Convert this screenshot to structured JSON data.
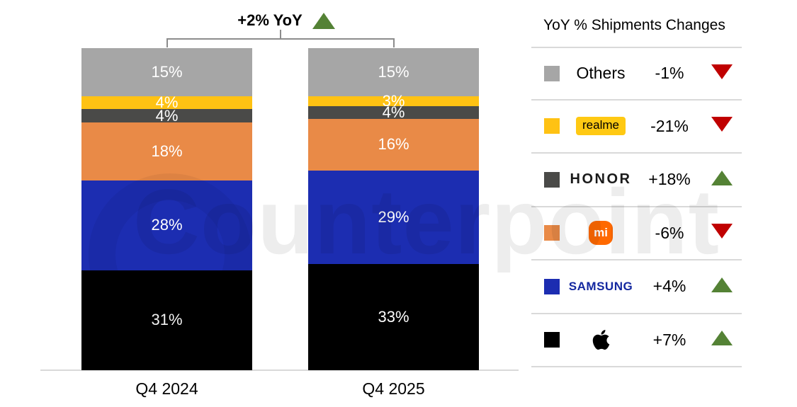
{
  "header": {
    "total_yoy": "+2% YoY"
  },
  "watermark": {
    "text": "Counterpoint"
  },
  "chart_data": {
    "type": "bar",
    "stacked": true,
    "unit": "%",
    "title": "+2% YoY",
    "categories": [
      "Q4 2024",
      "Q4 2025"
    ],
    "series": [
      {
        "name": "Others",
        "color": "#a6a6a6",
        "values": [
          15,
          15
        ],
        "yoy": "-1%",
        "trend": "down"
      },
      {
        "name": "realme",
        "color": "#ffc213",
        "values": [
          4,
          3
        ],
        "yoy": "-21%",
        "trend": "down"
      },
      {
        "name": "HONOR",
        "color": "#4a4a48",
        "values": [
          4,
          4
        ],
        "yoy": "+18%",
        "trend": "up"
      },
      {
        "name": "Xiaomi",
        "color": "#e98a47",
        "values": [
          18,
          16
        ],
        "yoy": "-6%",
        "trend": "down"
      },
      {
        "name": "Samsung",
        "color": "#1c2db1",
        "values": [
          28,
          29
        ],
        "yoy": "+4%",
        "trend": "up"
      },
      {
        "name": "Apple",
        "color": "#000000",
        "values": [
          31,
          33
        ],
        "yoy": "+7%",
        "trend": "up"
      }
    ],
    "ylim": [
      0,
      100
    ],
    "grid": false,
    "legend_position": "right"
  },
  "legend": {
    "title": "YoY % Shipments Changes",
    "rows": [
      {
        "brand": "Others",
        "display": "text",
        "swatch": "#a6a6a6",
        "value": "-1%",
        "trend": "down"
      },
      {
        "brand": "realme",
        "display": "badge",
        "swatch": "#ffc213",
        "value": "-21%",
        "trend": "down"
      },
      {
        "brand": "HONOR",
        "display": "honor",
        "swatch": "#4a4a48",
        "value": "+18%",
        "trend": "up"
      },
      {
        "brand": "mi",
        "display": "mi",
        "swatch": "#e98a47",
        "value": "-6%",
        "trend": "down"
      },
      {
        "brand": "SAMSUNG",
        "display": "samsung",
        "swatch": "#1c2db1",
        "value": "+4%",
        "trend": "up"
      },
      {
        "brand": "Apple",
        "display": "apple",
        "swatch": "#000000",
        "value": "+7%",
        "trend": "up"
      }
    ]
  },
  "colors": {
    "up_triangle": "#548235",
    "down_triangle": "#c00000",
    "divider": "#d9d9d9",
    "bracket": "#8c8c8c",
    "samsung_text": "#1428a0",
    "mi_logo_bg": "#ff6900",
    "realme_badge_bg": "#ffc913"
  }
}
